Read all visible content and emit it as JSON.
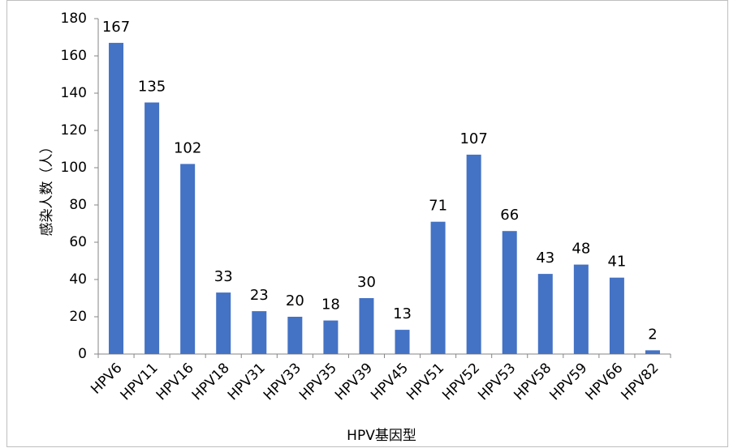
{
  "chart_data": {
    "type": "bar",
    "categories": [
      "HPV6",
      "HPV11",
      "HPV16",
      "HPV18",
      "HPV31",
      "HPV33",
      "HPV35",
      "HPV39",
      "HPV45",
      "HPV51",
      "HPV52",
      "HPV53",
      "HPV58",
      "HPV59",
      "HPV66",
      "HPV82"
    ],
    "values": [
      167,
      135,
      102,
      33,
      23,
      20,
      18,
      30,
      13,
      71,
      107,
      66,
      43,
      48,
      41,
      2
    ],
    "color": "#4472c4",
    "x_label": "HPV基因型",
    "y_label": "感染人数（人）",
    "ylim": [
      0,
      180
    ],
    "yticks": [
      0,
      20,
      40,
      60,
      80,
      100,
      120,
      140,
      160,
      180
    ],
    "grid": false
  }
}
